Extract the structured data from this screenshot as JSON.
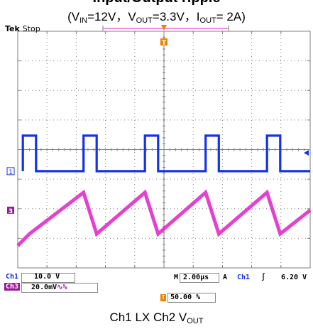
{
  "title": {
    "line1": "Input/Output ripple",
    "vin_sub": "IN",
    "vin_val": "=12V，",
    "vout_sub": "OUT",
    "vout_val": "=3.3V，",
    "iout_sub": "OUT",
    "iout_val": "= 2A)"
  },
  "scope": {
    "brand": "Tek",
    "state": "Stop",
    "ch1_marker": "1",
    "ch3_marker": "3",
    "trigger_marker": "T",
    "ch1_label": "Ch1",
    "ch1_scale": "10.0 V",
    "ch3_label": "Ch3",
    "ch3_scale": "20.0mV",
    "ch3_coupling": "∿%",
    "timebase_label": "M",
    "timebase": "2.00µs",
    "trigger_mode": "A",
    "trigger_source": "Ch1",
    "trigger_slope": "∫",
    "trigger_level": "6.20 V",
    "trigger_position": "50.00 %",
    "colors": {
      "ch1": "#1432e6",
      "ch3": "#e020c8",
      "trigger": "#f08000",
      "grid": "#7f7f7f",
      "ch3_badge": "#9a1a9a"
    }
  },
  "caption": {
    "ch1": "Ch1 LX Ch2 V",
    "sub": "OUT"
  },
  "chart_data": {
    "type": "line",
    "title": "Input/Output ripple (VIN=12V，VOUT=3.3V，IOUT= 2A)",
    "xlabel": "",
    "ylabel": "",
    "grid": true,
    "x_unit": "µs",
    "x_div": 2.0,
    "x_range": [
      -10,
      10
    ],
    "series": [
      {
        "name": "Ch1",
        "unit": "V",
        "volts_per_div": 10.0,
        "x": [
          -9.65,
          -9.65,
          -8.75,
          -8.75,
          -5.5,
          -5.5,
          -4.6,
          -4.6,
          -1.3,
          -1.3,
          -0.4,
          -0.4,
          2.85,
          2.85,
          3.75,
          3.75,
          7.05,
          7.05,
          7.95,
          7.95,
          10
        ],
        "y": [
          0,
          12,
          12,
          0,
          0,
          12,
          12,
          0,
          0,
          12,
          12,
          0,
          0,
          12,
          12,
          0,
          0,
          12,
          12,
          0,
          0
        ]
      },
      {
        "name": "Ch3",
        "unit": "mV",
        "volts_per_div": 20.0,
        "x": [
          -10,
          -9.2,
          -5.5,
          -4.6,
          -1.3,
          -0.4,
          2.85,
          3.75,
          7.05,
          7.95,
          10
        ],
        "y": [
          -24,
          -16,
          12,
          -16,
          12,
          -16,
          12,
          -16,
          12,
          -16,
          0
        ]
      }
    ]
  }
}
